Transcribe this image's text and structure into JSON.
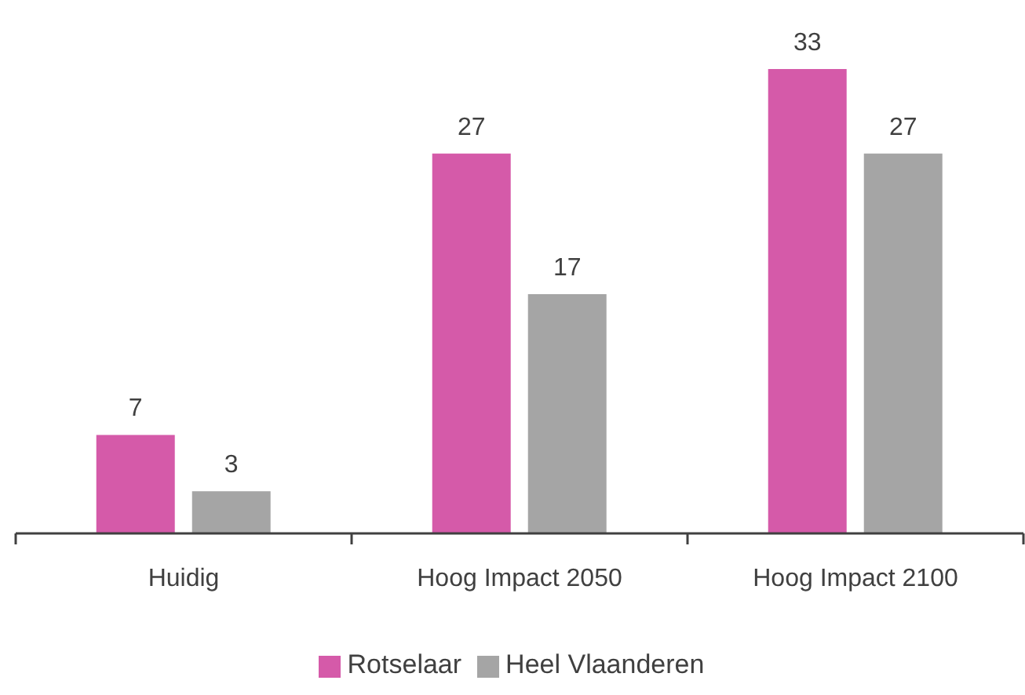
{
  "chart_data": {
    "type": "bar",
    "categories": [
      "Huidig",
      "Hoog Impact 2050",
      "Hoog Impact 2100"
    ],
    "series": [
      {
        "name": "Rotselaar",
        "color": "#d55aa9",
        "values": [
          7,
          27,
          33
        ]
      },
      {
        "name": "Heel Vlaanderen",
        "color": "#a5a5a5",
        "values": [
          3,
          17,
          27
        ]
      }
    ],
    "data_labels": true,
    "legend": "bottom",
    "tick_labels": "x"
  }
}
